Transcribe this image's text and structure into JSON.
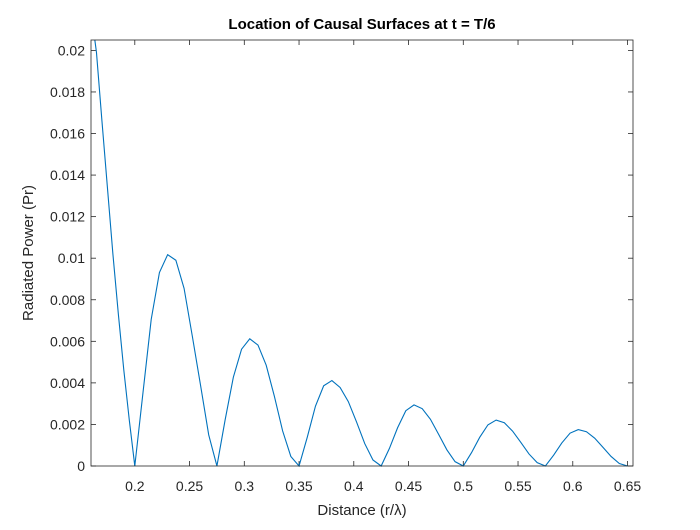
{
  "chart_data": {
    "type": "line",
    "title": "Location of Causal Surfaces at t = T/6",
    "xlabel": "Distance (r/λ)",
    "ylabel": "Radiated Power (Pr)",
    "xlim": [
      0.16,
      0.655
    ],
    "ylim": [
      0,
      0.0205
    ],
    "grid": false,
    "box": true,
    "xticks": [
      0.2,
      0.25,
      0.3,
      0.35,
      0.4,
      0.45,
      0.5,
      0.55,
      0.6,
      0.65
    ],
    "xtick_labels": [
      "0.2",
      "0.25",
      "0.3",
      "0.35",
      "0.4",
      "0.45",
      "0.5",
      "0.55",
      "0.6",
      "0.65"
    ],
    "yticks": [
      0,
      0.002,
      0.004,
      0.006,
      0.008,
      0.01,
      0.012,
      0.014,
      0.016,
      0.018,
      0.02
    ],
    "ytick_labels": [
      "0",
      "0.002",
      "0.004",
      "0.006",
      "0.008",
      "0.01",
      "0.012",
      "0.014",
      "0.016",
      "0.018",
      "0.02"
    ],
    "line_color": "#0072bd",
    "series": [
      {
        "x": [
          0.1635,
          0.165,
          0.17,
          0.175,
          0.18,
          0.185,
          0.19,
          0.195,
          0.2,
          0.2075,
          0.215,
          0.2225,
          0.23,
          0.2375,
          0.245,
          0.2525,
          0.26,
          0.2675,
          0.275,
          0.2825,
          0.29,
          0.2975,
          0.305,
          0.3125,
          0.32,
          0.3275,
          0.335,
          0.3425,
          0.35,
          0.3575,
          0.365,
          0.3725,
          0.38,
          0.3875,
          0.395,
          0.4025,
          0.41,
          0.4175,
          0.425,
          0.4325,
          0.44,
          0.4475,
          0.455,
          0.4625,
          0.47,
          0.4775,
          0.485,
          0.4925,
          0.5,
          0.5075,
          0.515,
          0.5225,
          0.53,
          0.5375,
          0.545,
          0.5525,
          0.56,
          0.5675,
          0.575,
          0.5825,
          0.59,
          0.5975,
          0.605,
          0.6125,
          0.62,
          0.6275,
          0.635,
          0.6425,
          0.65
        ],
        "y": [
          0.0205,
          0.0199,
          0.0166,
          0.0134,
          0.0102,
          0.0073,
          0.0046,
          0.0022,
          0,
          0.00354,
          0.00706,
          0.00931,
          0.01017,
          0.0099,
          0.00855,
          0.00626,
          0.0039,
          0.0015,
          0,
          0.00222,
          0.00427,
          0.00562,
          0.00612,
          0.00582,
          0.00485,
          0.00335,
          0.00169,
          0.00046,
          0,
          0.00138,
          0.00288,
          0.00386,
          0.00411,
          0.00378,
          0.0031,
          0.00212,
          0.00108,
          0.00029,
          0,
          0.00084,
          0.00184,
          0.00266,
          0.00294,
          0.00276,
          0.00225,
          0.00152,
          0.00078,
          0.00021,
          0,
          0.00064,
          0.00138,
          0.00198,
          0.00221,
          0.00208,
          0.00168,
          0.00114,
          0.00058,
          0.00016,
          0,
          0.00052,
          0.00111,
          0.00158,
          0.00175,
          0.00165,
          0.00134,
          0.0009,
          0.00046,
          0.00012,
          0
        ]
      }
    ]
  }
}
